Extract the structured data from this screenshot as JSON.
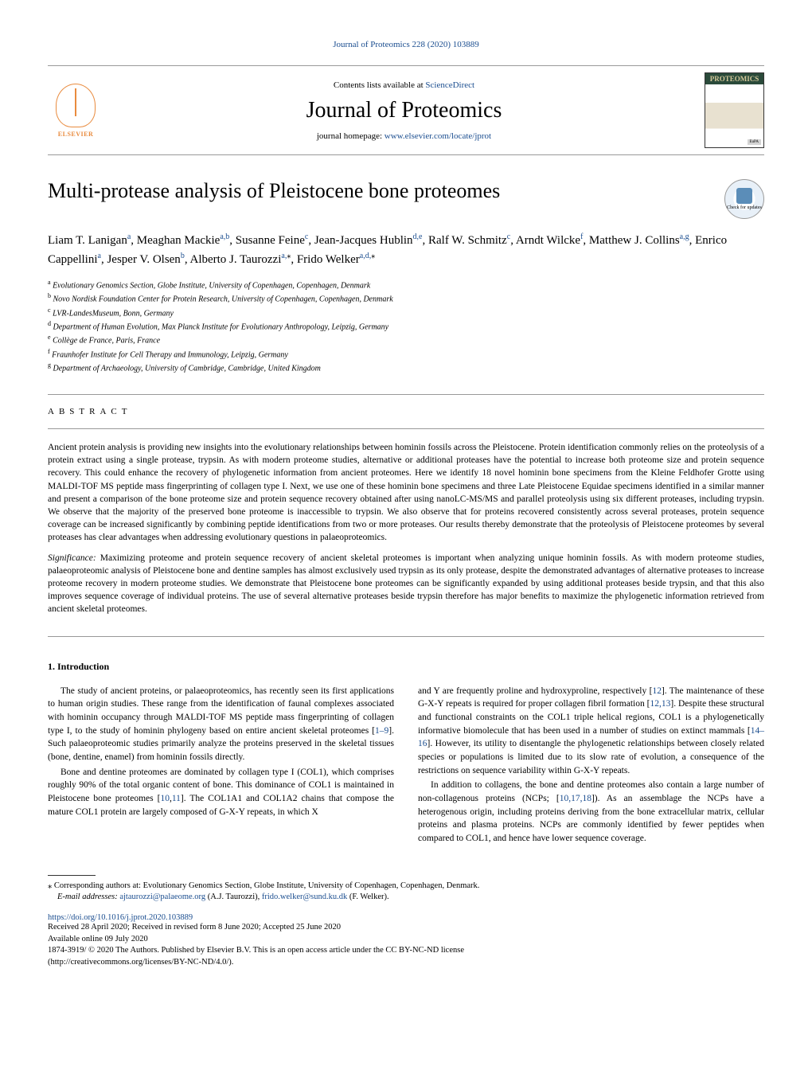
{
  "journal_ref": "Journal of Proteomics 228 (2020) 103889",
  "contents_prefix": "Contents lists available at ",
  "contents_link": "ScienceDirect",
  "journal_name": "Journal of Proteomics",
  "homepage_prefix": "journal homepage: ",
  "homepage_link": "www.elsevier.com/locate/jprot",
  "elsevier": "ELSEVIER",
  "cover_title": "PROTEOMICS",
  "eupa": "EuPA",
  "check_updates": "Check for updates",
  "article_title": "Multi-protease analysis of Pleistocene bone proteomes",
  "authors_html": "Liam T. Lanigan|a|, Meaghan Mackie|a,b|, Susanne Feine|c|, Jean-Jacques Hublin|d,e|, Ralf W. Schmitz|c|, Arndt Wilcke|f|, Matthew J. Collins|a,g|, Enrico Cappellini|a|, Jesper V. Olsen|b|, Alberto J. Taurozzi|a,*|, Frido Welker|a,d,*|",
  "affiliations": [
    {
      "sup": "a",
      "text": "Evolutionary Genomics Section, Globe Institute, University of Copenhagen, Copenhagen, Denmark"
    },
    {
      "sup": "b",
      "text": "Novo Nordisk Foundation Center for Protein Research, University of Copenhagen, Copenhagen, Denmark"
    },
    {
      "sup": "c",
      "text": "LVR-LandesMuseum, Bonn, Germany"
    },
    {
      "sup": "d",
      "text": "Department of Human Evolution, Max Planck Institute for Evolutionary Anthropology, Leipzig, Germany"
    },
    {
      "sup": "e",
      "text": "Collège de France, Paris, France"
    },
    {
      "sup": "f",
      "text": "Fraunhofer Institute for Cell Therapy and Immunology, Leipzig, Germany"
    },
    {
      "sup": "g",
      "text": "Department of Archaeology, University of Cambridge, Cambridge, United Kingdom"
    }
  ],
  "abstract_label": "ABSTRACT",
  "abstract_p1": "Ancient protein analysis is providing new insights into the evolutionary relationships between hominin fossils across the Pleistocene. Protein identification commonly relies on the proteolysis of a protein extract using a single protease, trypsin. As with modern proteome studies, alternative or additional proteases have the potential to increase both proteome size and protein sequence recovery. This could enhance the recovery of phylogenetic information from ancient proteomes. Here we identify 18 novel hominin bone specimens from the Kleine Feldhofer Grotte using MALDI-TOF MS peptide mass fingerprinting of collagen type I. Next, we use one of these hominin bone specimens and three Late Pleistocene Equidae specimens identified in a similar manner and present a comparison of the bone proteome size and protein sequence recovery obtained after using nanoLC-MS/MS and parallel proteolysis using six different proteases, including trypsin. We observe that the majority of the preserved bone proteome is inaccessible to trypsin. We also observe that for proteins recovered consistently across several proteases, protein sequence coverage can be increased significantly by combining peptide identifications from two or more proteases. Our results thereby demonstrate that the proteolysis of Pleistocene proteomes by several proteases has clear advantages when addressing evolutionary questions in palaeoproteomics.",
  "significance_label": "Significance:",
  "significance_text": " Maximizing proteome and protein sequence recovery of ancient skeletal proteomes is important when analyzing unique hominin fossils. As with modern proteome studies, palaeoproteomic analysis of Pleistocene bone and dentine samples has almost exclusively used trypsin as its only protease, despite the demonstrated advantages of alternative proteases to increase proteome recovery in modern proteome studies. We demonstrate that Pleistocene bone proteomes can be significantly expanded by using additional proteases beside trypsin, and that this also improves sequence coverage of individual proteins. The use of several alternative proteases beside trypsin therefore has major benefits to maximize the phylogenetic information retrieved from ancient skeletal proteomes.",
  "intro_heading": "1. Introduction",
  "col1_p1": "The study of ancient proteins, or palaeoproteomics, has recently seen its first applications to human origin studies. These range from the identification of faunal complexes associated with hominin occupancy through MALDI-TOF MS peptide mass fingerprinting of collagen type I, to the study of hominin phylogeny based on entire ancient skeletal proteomes [1–9]. Such palaeoproteomic studies primarily analyze the proteins preserved in the skeletal tissues (bone, dentine, enamel) from hominin fossils directly.",
  "col1_p2": "Bone and dentine proteomes are dominated by collagen type I (COL1), which comprises roughly 90% of the total organic content of bone. This dominance of COL1 is maintained in Pleistocene bone proteomes [10,11]. The COL1A1 and COL1A2 chains that compose the mature COL1 protein are largely composed of G-X-Y repeats, in which X",
  "col2_p1_a": "and Y are frequently proline and hydroxyproline, respectively [",
  "col2_p1_b": "]. The maintenance of these G-X-Y repeats is required for proper collagen fibril formation [",
  "col2_p1_c": "]. Despite these structural and functional constraints on the COL1 triple helical regions, COL1 is a phylogenetically informative biomolecule that has been used in a number of studies on extinct mammals [",
  "col2_p1_d": "]. However, its utility to disentangle the phylogenetic relationships between closely related species or populations is limited due to its slow rate of evolution, a consequence of the restrictions on sequence variability within G-X-Y repeats.",
  "col2_p2_a": "In addition to collagens, the bone and dentine proteomes also contain a large number of non-collagenous proteins (NCPs; [",
  "col2_p2_b": "]). As an assemblage the NCPs have a heterogenous origin, including proteins deriving from the bone extracellular matrix, cellular proteins and plasma proteins. NCPs are commonly identified by fewer peptides when compared to COL1, and hence have lower sequence coverage.",
  "cites": {
    "c12": "12",
    "c1213": "12,13",
    "c1416": "14–16",
    "c101718": "10,17,18"
  },
  "corr_star": "⁎",
  "corr_text": " Corresponding authors at: Evolutionary Genomics Section, Globe Institute, University of Copenhagen, Copenhagen, Denmark.",
  "email_label": "E-mail addresses: ",
  "email1": "ajtaurozzi@palaeome.org",
  "email1_name": " (A.J. Taurozzi), ",
  "email2": "frido.welker@sund.ku.dk",
  "email2_name": " (F. Welker).",
  "doi": "https://doi.org/10.1016/j.jprot.2020.103889",
  "dates": "Received 28 April 2020; Received in revised form 8 June 2020; Accepted 25 June 2020",
  "available": "Available online 09 July 2020",
  "license1": "1874-3919/ © 2020 The Authors. Published by Elsevier B.V. This is an open access article under the CC BY-NC-ND license",
  "license2": "(http://creativecommons.org/licenses/BY-NC-ND/4.0/)."
}
